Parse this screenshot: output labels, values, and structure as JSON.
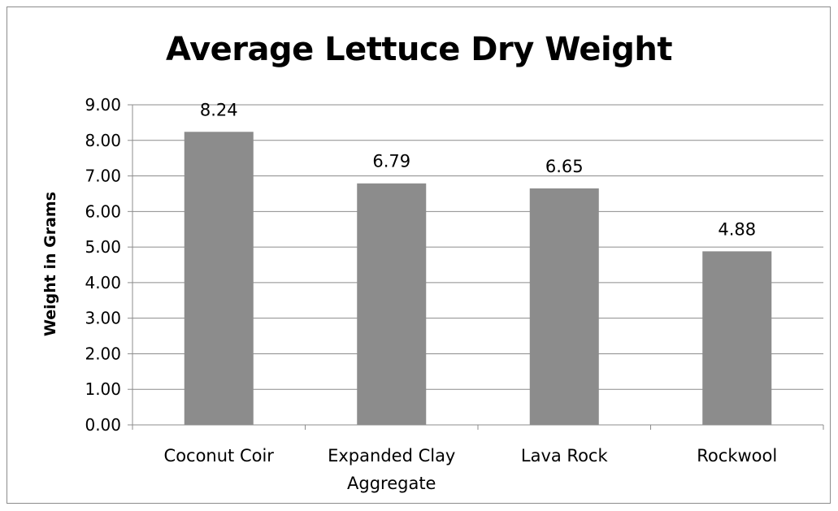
{
  "chart_data": {
    "type": "bar",
    "title": "Average Lettuce Dry Weight",
    "xlabel": "",
    "ylabel": "Weight in Grams",
    "categories": [
      [
        "Coconut Coir"
      ],
      [
        "Expanded Clay",
        "Aggregate"
      ],
      [
        "Lava Rock"
      ],
      [
        "Rockwool"
      ]
    ],
    "values": [
      8.24,
      6.79,
      6.65,
      4.88
    ],
    "data_labels": [
      "8.24",
      "6.79",
      "6.65",
      "4.88"
    ],
    "yticks": [
      "0.00",
      "1.00",
      "2.00",
      "3.00",
      "4.00",
      "5.00",
      "6.00",
      "7.00",
      "8.00",
      "9.00"
    ],
    "ylim": [
      0,
      9
    ],
    "grid": true,
    "legend": "none",
    "colors": {
      "bar": "#8c8c8c",
      "grid": "#8c8c8c",
      "axis": "#8c8c8c"
    }
  }
}
